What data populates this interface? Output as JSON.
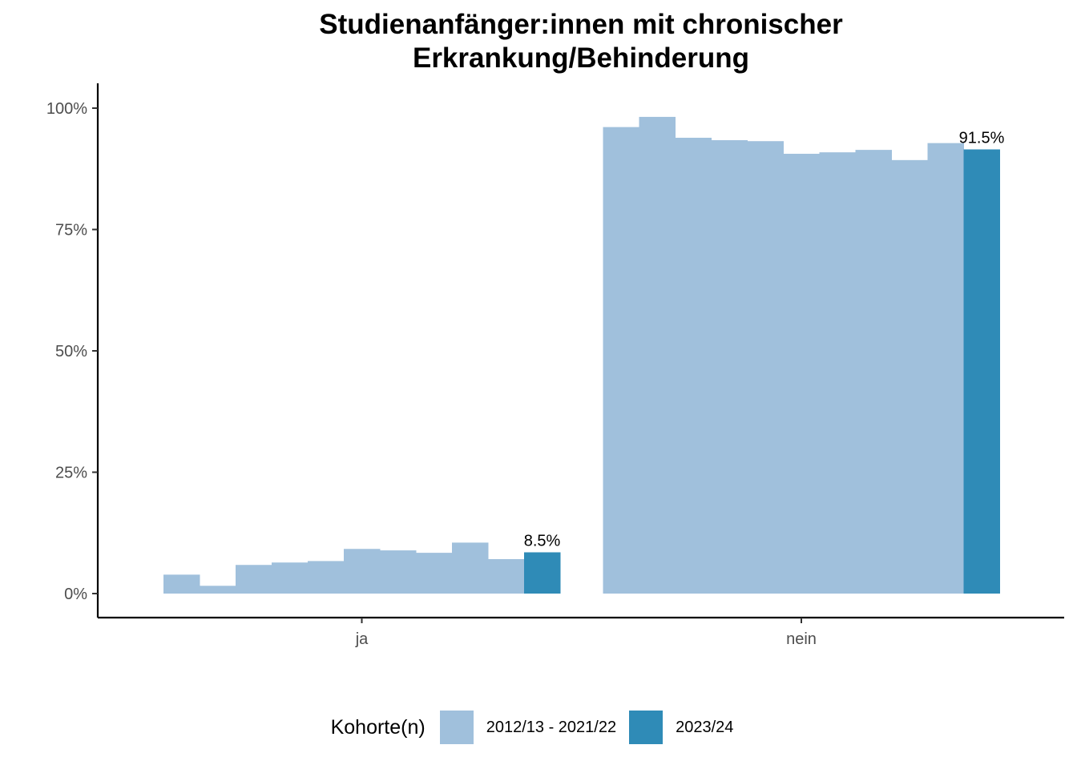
{
  "chart_data": {
    "type": "bar",
    "title_lines": [
      "Studienanfänger:innen mit chronischer",
      "Erkrankung/Behinderung"
    ],
    "xlabel": "",
    "ylabel": "",
    "ylim": [
      0,
      1.05
    ],
    "yticks": [
      0,
      0.25,
      0.5,
      0.75,
      1.0
    ],
    "ytick_labels": [
      "0%",
      "25%",
      "50%",
      "75%",
      "100%"
    ],
    "categories": [
      "ja",
      "nein"
    ],
    "series": [
      {
        "cohort": "2012/13",
        "group": "historic",
        "values": [
          0.039,
          0.961
        ]
      },
      {
        "cohort": "2013/14",
        "group": "historic",
        "values": [
          0.016,
          0.982
        ]
      },
      {
        "cohort": "2014/15",
        "group": "historic",
        "values": [
          0.059,
          0.939
        ]
      },
      {
        "cohort": "2015/16",
        "group": "historic",
        "values": [
          0.064,
          0.934
        ]
      },
      {
        "cohort": "2016/17",
        "group": "historic",
        "values": [
          0.067,
          0.932
        ]
      },
      {
        "cohort": "2017/18",
        "group": "historic",
        "values": [
          0.092,
          0.906
        ]
      },
      {
        "cohort": "2018/19",
        "group": "historic",
        "values": [
          0.089,
          0.909
        ]
      },
      {
        "cohort": "2019/20",
        "group": "historic",
        "values": [
          0.084,
          0.914
        ]
      },
      {
        "cohort": "2020/21",
        "group": "historic",
        "values": [
          0.105,
          0.893
        ]
      },
      {
        "cohort": "2021/22",
        "group": "historic",
        "values": [
          0.071,
          0.928
        ]
      },
      {
        "cohort": "2023/24",
        "group": "current",
        "values": [
          0.085,
          0.915
        ]
      }
    ],
    "data_labels": [
      "8.5%",
      "91.5%"
    ],
    "legend": {
      "title": "Kohorte(n)",
      "position": "bottom",
      "items": [
        {
          "label": "2012/13 - 2021/22",
          "color": "#a0c0dc"
        },
        {
          "label": "2023/24",
          "color": "#2f8bb7"
        }
      ]
    },
    "colors": {
      "historic": "#a0c0dc",
      "current": "#2f8bb7"
    },
    "grid": false
  }
}
